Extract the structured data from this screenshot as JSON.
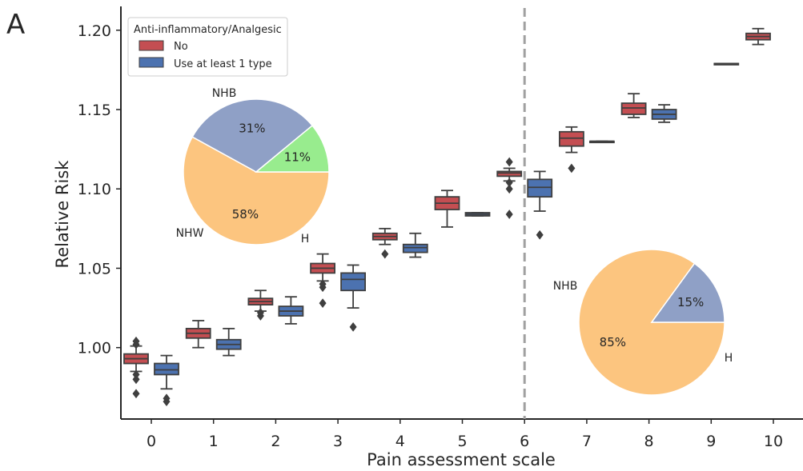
{
  "panel_label": "A",
  "chart_data": [
    {
      "type": "box",
      "xlabel": "Pain assessment scale",
      "ylabel": "Relative Risk",
      "categories": [
        "0",
        "1",
        "2",
        "3",
        "4",
        "5",
        "6",
        "7",
        "8",
        "9",
        "10"
      ],
      "ylim": [
        0.955,
        1.215
      ],
      "yticks": [
        "1.00",
        "1.05",
        "1.10",
        "1.15",
        "1.20"
      ],
      "ytick_values": [
        1.0,
        1.05,
        1.1,
        1.15,
        1.2
      ],
      "grid": false,
      "legend_position": "top-left",
      "legend_title": "Anti-inflammatory/Analgesic",
      "reference_line_x": "6",
      "series": [
        {
          "name": "No",
          "color": "#c44e52",
          "boxes": [
            {
              "cat": "0",
              "q1": 0.99,
              "median": 0.993,
              "q3": 0.996,
              "whislo": 0.985,
              "whishi": 1.001,
              "fliers": [
                0.971,
                0.98,
                0.983,
                1.002,
                1.004
              ]
            },
            {
              "cat": "1",
              "q1": 1.006,
              "median": 1.009,
              "q3": 1.012,
              "whislo": 1.0,
              "whishi": 1.017,
              "fliers": []
            },
            {
              "cat": "2",
              "q1": 1.027,
              "median": 1.029,
              "q3": 1.031,
              "whislo": 1.023,
              "whishi": 1.036,
              "fliers": [
                1.02,
                1.022
              ]
            },
            {
              "cat": "3",
              "q1": 1.047,
              "median": 1.05,
              "q3": 1.053,
              "whislo": 1.042,
              "whishi": 1.059,
              "fliers": [
                1.028,
                1.038,
                1.04
              ]
            },
            {
              "cat": "4",
              "q1": 1.068,
              "median": 1.07,
              "q3": 1.072,
              "whislo": 1.065,
              "whishi": 1.075,
              "fliers": [
                1.059
              ]
            },
            {
              "cat": "5",
              "q1": 1.087,
              "median": 1.091,
              "q3": 1.095,
              "whislo": 1.076,
              "whishi": 1.099,
              "fliers": []
            },
            {
              "cat": "6",
              "q1": 1.108,
              "median": 1.11,
              "q3": 1.111,
              "whislo": 1.105,
              "whishi": 1.113,
              "fliers": [
                1.084,
                1.1,
                1.104,
                1.117
              ]
            },
            {
              "cat": "7",
              "q1": 1.127,
              "median": 1.132,
              "q3": 1.136,
              "whislo": 1.123,
              "whishi": 1.139,
              "fliers": [
                1.113
              ]
            },
            {
              "cat": "8",
              "q1": 1.147,
              "median": 1.151,
              "q3": 1.154,
              "whislo": 1.145,
              "whishi": 1.16,
              "fliers": []
            },
            {
              "cat": "10",
              "q1": 1.194,
              "median": 1.196,
              "q3": 1.198,
              "whislo": 1.191,
              "whishi": 1.201,
              "fliers": []
            }
          ]
        },
        {
          "name": "Use at least 1 type",
          "color": "#4c72b0",
          "boxes": [
            {
              "cat": "0",
              "q1": 0.983,
              "median": 0.986,
              "q3": 0.99,
              "whislo": 0.974,
              "whishi": 0.995,
              "fliers": [
                0.966,
                0.968
              ]
            },
            {
              "cat": "1",
              "q1": 0.999,
              "median": 1.002,
              "q3": 1.005,
              "whislo": 0.995,
              "whishi": 1.012,
              "fliers": []
            },
            {
              "cat": "2",
              "q1": 1.02,
              "median": 1.023,
              "q3": 1.026,
              "whislo": 1.015,
              "whishi": 1.032,
              "fliers": []
            },
            {
              "cat": "3",
              "q1": 1.036,
              "median": 1.043,
              "q3": 1.047,
              "whislo": 1.025,
              "whishi": 1.052,
              "fliers": [
                1.013
              ]
            },
            {
              "cat": "4",
              "q1": 1.06,
              "median": 1.063,
              "q3": 1.065,
              "whislo": 1.057,
              "whishi": 1.072,
              "fliers": []
            },
            {
              "cat": "5",
              "q1": 1.083,
              "median": 1.084,
              "q3": 1.085,
              "whislo": 1.083,
              "whishi": 1.085,
              "fliers": []
            },
            {
              "cat": "6",
              "q1": 1.095,
              "median": 1.101,
              "q3": 1.106,
              "whislo": 1.086,
              "whishi": 1.111,
              "fliers": [
                1.071
              ]
            },
            {
              "cat": "7",
              "q1": 1.13,
              "median": 1.13,
              "q3": 1.13,
              "whislo": 1.13,
              "whishi": 1.13,
              "fliers": []
            },
            {
              "cat": "8",
              "q1": 1.144,
              "median": 1.147,
              "q3": 1.15,
              "whislo": 1.142,
              "whishi": 1.153,
              "fliers": []
            },
            {
              "cat": "9",
              "q1": 1.179,
              "median": 1.179,
              "q3": 1.179,
              "whislo": 1.179,
              "whishi": 1.179,
              "fliers": []
            }
          ]
        }
      ]
    },
    {
      "type": "pie",
      "slices": [
        {
          "label": "NHB",
          "pct_label": "58%",
          "value": 58,
          "color": "#fcc57f"
        },
        {
          "label": "H",
          "pct_label": "31%",
          "value": 31,
          "color": "#8fa0c6"
        },
        {
          "label": "NHW",
          "pct_label": "11%",
          "value": 11,
          "color": "#98ec8e"
        }
      ]
    },
    {
      "type": "pie",
      "slices": [
        {
          "label": "NHB",
          "pct_label": "85%",
          "value": 85,
          "color": "#fcc57f"
        },
        {
          "label": "H",
          "pct_label": "15%",
          "value": 15,
          "color": "#8fa0c6"
        }
      ]
    }
  ]
}
